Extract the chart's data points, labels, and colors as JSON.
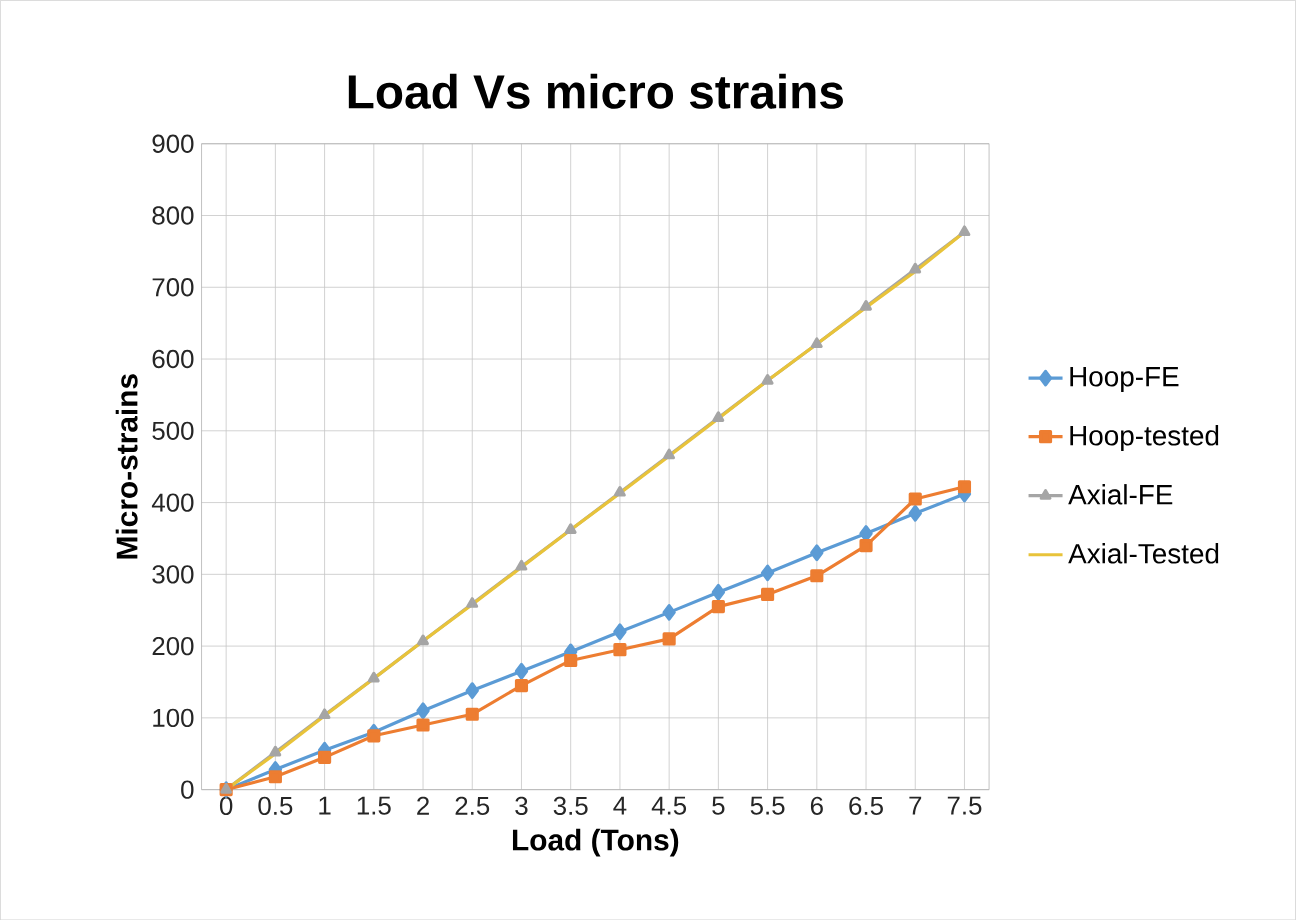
{
  "chart_data": {
    "type": "line",
    "title": "Load Vs micro strains",
    "xlabel": "Load (Tons)",
    "ylabel": "Micro-strains",
    "categories": [
      "0",
      "0.5",
      "1",
      "1.5",
      "2",
      "2.5",
      "3",
      "3.5",
      "4",
      "4.5",
      "5",
      "5.5",
      "6",
      "6.5",
      "7",
      "7.5"
    ],
    "series": [
      {
        "name": "Hoop-FE",
        "color": "#5b9bd5",
        "marker": "diamond",
        "values": [
          0,
          28,
          55,
          80,
          110,
          138,
          165,
          192,
          220,
          247,
          275,
          302,
          330,
          357,
          385,
          412
        ]
      },
      {
        "name": "Hoop-tested",
        "color": "#ed7d31",
        "marker": "square",
        "values": [
          0,
          18,
          45,
          75,
          90,
          105,
          145,
          180,
          195,
          210,
          255,
          272,
          298,
          340,
          405,
          422
        ]
      },
      {
        "name": "Axial-FE",
        "color": "#a5a5a5",
        "marker": "triangle",
        "values": [
          0,
          52,
          104,
          155,
          207,
          259,
          311,
          362,
          414,
          466,
          518,
          570,
          621,
          673,
          725,
          777
        ]
      },
      {
        "name": "Axial-Tested",
        "color": "#e8c33a",
        "marker": "none",
        "values": [
          0,
          50,
          103,
          155,
          207,
          258,
          310,
          362,
          413,
          465,
          517,
          570,
          621,
          672,
          722,
          777
        ]
      }
    ],
    "ylim": [
      0,
      900
    ],
    "yticks": [
      0,
      100,
      200,
      300,
      400,
      500,
      600,
      700,
      800,
      900
    ],
    "grid": true,
    "legend": "right",
    "line_style": "solid"
  }
}
